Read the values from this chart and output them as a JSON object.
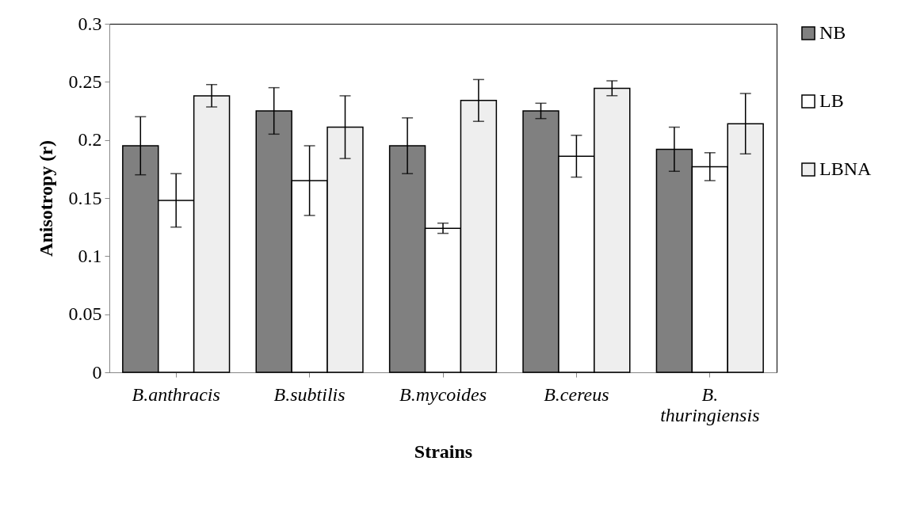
{
  "chart_data": {
    "type": "bar",
    "xlabel": "Strains",
    "ylabel": "Anisotropy (r)",
    "categories": [
      "B.anthracis",
      "B.subtilis",
      "B.mycoides",
      "B.cereus",
      "B. thuringiensis"
    ],
    "series": [
      {
        "name": "NB",
        "color": "#808080",
        "values": [
          0.195,
          0.225,
          0.195,
          0.225,
          0.192
        ],
        "errors": [
          0.025,
          0.02,
          0.024,
          0.0066,
          0.019
        ]
      },
      {
        "name": "LB",
        "color": "#ffffff",
        "values": [
          0.148,
          0.165,
          0.124,
          0.186,
          0.177
        ],
        "errors": [
          0.023,
          0.03,
          0.0044,
          0.018,
          0.012
        ]
      },
      {
        "name": "LBNA",
        "color": "#eeeeee",
        "values": [
          0.238,
          0.211,
          0.234,
          0.2445,
          0.214
        ],
        "errors": [
          0.0096,
          0.027,
          0.018,
          0.0064,
          0.026
        ]
      }
    ],
    "ylim": [
      0,
      0.3
    ],
    "yticks": [
      0,
      0.05,
      0.1,
      0.15,
      0.2,
      0.25,
      0.3
    ],
    "grid": false,
    "legend": "right"
  }
}
